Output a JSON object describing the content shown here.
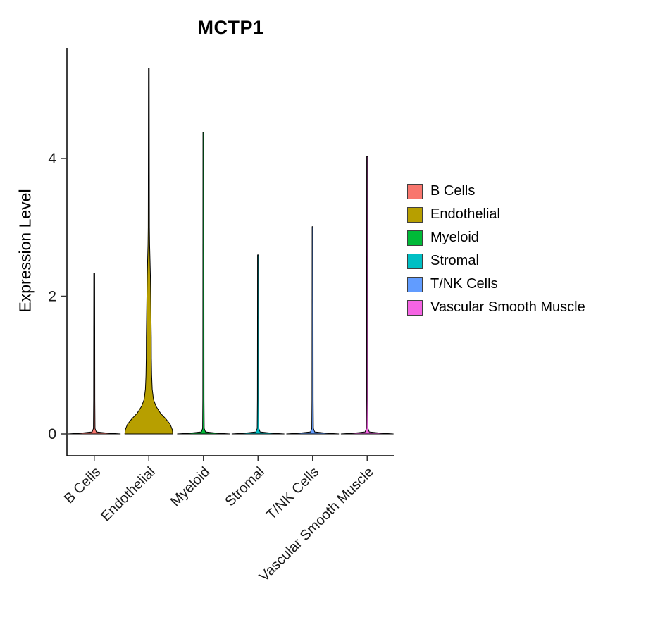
{
  "title": "MCTP1",
  "y_axis": {
    "label": "Expression Level"
  },
  "legend": {
    "items": [
      {
        "label": "B Cells",
        "color": "#F8766D"
      },
      {
        "label": "Endothelial",
        "color": "#B79F00"
      },
      {
        "label": "Myeloid",
        "color": "#00BA38"
      },
      {
        "label": "Stromal",
        "color": "#00BFC4"
      },
      {
        "label": "T/NK Cells",
        "color": "#619CFF"
      },
      {
        "label": "Vascular Smooth Muscle",
        "color": "#F564E3"
      }
    ]
  },
  "chart_data": {
    "type": "violin",
    "title": "MCTP1",
    "ylabel": "Expression Level",
    "ylim": [
      0,
      5.6
    ],
    "yticks": [
      0,
      2,
      4
    ],
    "grid": false,
    "legend_position": "right",
    "categories": [
      "B Cells",
      "Endothelial",
      "Myeloid",
      "Stromal",
      "T/NK Cells",
      "Vascular Smooth Muscle"
    ],
    "colors": [
      "#F8766D",
      "#B79F00",
      "#00BA38",
      "#00BFC4",
      "#619CFF",
      "#F564E3"
    ],
    "series": [
      {
        "name": "B Cells",
        "max_expression": 2.33,
        "profile": [
          [
            0,
            1.0
          ],
          [
            0.012,
            0.5
          ],
          [
            0.03,
            0.08
          ],
          [
            0.08,
            0.03
          ],
          [
            0.5,
            0.022
          ],
          [
            2.33,
            0.018
          ]
        ]
      },
      {
        "name": "Endothelial",
        "max_expression": 5.31,
        "profile": [
          [
            0,
            0.92
          ],
          [
            0.06,
            0.9
          ],
          [
            0.14,
            0.82
          ],
          [
            0.22,
            0.65
          ],
          [
            0.3,
            0.45
          ],
          [
            0.4,
            0.28
          ],
          [
            0.5,
            0.18
          ],
          [
            0.65,
            0.13
          ],
          [
            0.85,
            0.11
          ],
          [
            1.1,
            0.1
          ],
          [
            1.4,
            0.095
          ],
          [
            1.7,
            0.085
          ],
          [
            2.0,
            0.075
          ],
          [
            2.3,
            0.06
          ],
          [
            2.55,
            0.045
          ],
          [
            2.75,
            0.03
          ],
          [
            3.0,
            0.022
          ],
          [
            3.6,
            0.02
          ],
          [
            5.31,
            0.016
          ]
        ]
      },
      {
        "name": "Myeloid",
        "max_expression": 4.38,
        "profile": [
          [
            0,
            1.0
          ],
          [
            0.012,
            0.5
          ],
          [
            0.03,
            0.08
          ],
          [
            0.08,
            0.03
          ],
          [
            0.5,
            0.022
          ],
          [
            4.38,
            0.018
          ]
        ]
      },
      {
        "name": "Stromal",
        "max_expression": 2.6,
        "profile": [
          [
            0,
            1.0
          ],
          [
            0.012,
            0.5
          ],
          [
            0.03,
            0.08
          ],
          [
            0.08,
            0.03
          ],
          [
            0.5,
            0.022
          ],
          [
            2.6,
            0.018
          ]
        ]
      },
      {
        "name": "T/NK Cells",
        "max_expression": 3.01,
        "profile": [
          [
            0,
            1.0
          ],
          [
            0.012,
            0.5
          ],
          [
            0.03,
            0.08
          ],
          [
            0.08,
            0.03
          ],
          [
            0.5,
            0.022
          ],
          [
            3.01,
            0.018
          ]
        ]
      },
      {
        "name": "Vascular Smooth Muscle",
        "max_expression": 4.03,
        "profile": [
          [
            0,
            1.0
          ],
          [
            0.012,
            0.5
          ],
          [
            0.03,
            0.08
          ],
          [
            0.08,
            0.03
          ],
          [
            0.5,
            0.022
          ],
          [
            4.03,
            0.018
          ]
        ]
      }
    ]
  }
}
